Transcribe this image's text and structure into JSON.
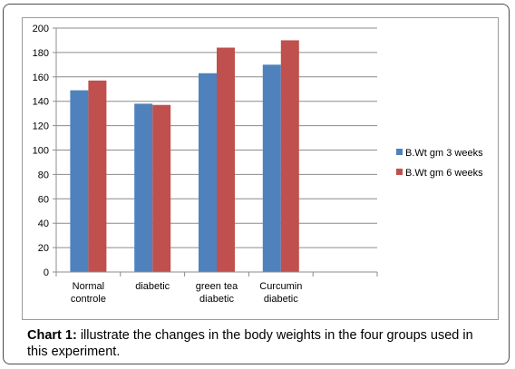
{
  "chart_data": {
    "type": "bar",
    "categories": [
      [
        "Normal",
        "controle"
      ],
      [
        "diabetic"
      ],
      [
        "green tea",
        "diabetic"
      ],
      [
        "Curcumin",
        "diabetic"
      ]
    ],
    "series": [
      {
        "name": "B.Wt gm 3 weeks",
        "values": [
          149,
          138,
          163,
          170
        ],
        "color": "#4f81bd"
      },
      {
        "name": "B.Wt gm 6 weeks",
        "values": [
          157,
          137,
          184,
          190
        ],
        "color": "#c0504d"
      }
    ],
    "yticks": [
      0,
      20,
      40,
      60,
      80,
      100,
      120,
      140,
      160,
      180,
      200
    ],
    "ylim": [
      0,
      200
    ],
    "grid": true,
    "legend_position": "right",
    "xlabel": "",
    "ylabel": ""
  },
  "caption": {
    "lead": "Chart 1:",
    "text": " illustrate the changes in the body weights in the four groups used in this experiment."
  }
}
